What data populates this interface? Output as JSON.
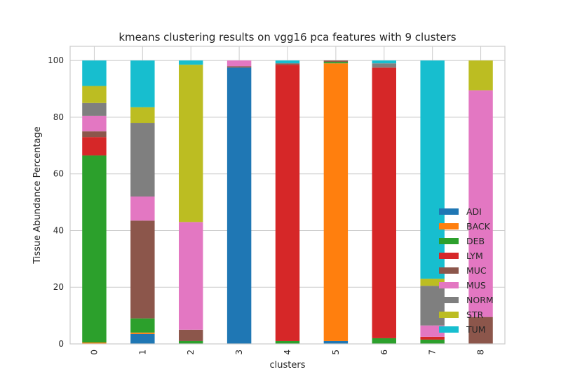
{
  "chart_data": {
    "type": "bar",
    "stacked": true,
    "title": "kmeans clustering results on vgg16 pca features with 9 clusters",
    "xlabel": "clusters",
    "ylabel": "Tissue Abundance Percentage",
    "categories": [
      "0",
      "1",
      "2",
      "3",
      "4",
      "5",
      "6",
      "7",
      "8"
    ],
    "ylim": [
      0,
      105
    ],
    "yticks": [
      0,
      20,
      40,
      60,
      80,
      100
    ],
    "grid": true,
    "legend_position": "lower right",
    "series": [
      {
        "name": "ADI",
        "color": "#1f77b4",
        "values": [
          0,
          3.5,
          0,
          97.5,
          0,
          1,
          0,
          0,
          0
        ]
      },
      {
        "name": "BACK",
        "color": "#ff7f0e",
        "values": [
          0.5,
          0.5,
          0,
          0,
          0,
          98,
          0,
          0,
          0
        ]
      },
      {
        "name": "DEB",
        "color": "#2ca02c",
        "values": [
          66,
          5,
          1,
          0,
          1,
          0.5,
          2,
          1.5,
          0
        ]
      },
      {
        "name": "LYM",
        "color": "#d62728",
        "values": [
          6.5,
          0,
          0,
          0,
          97.5,
          0,
          95.5,
          1,
          0
        ]
      },
      {
        "name": "MUC",
        "color": "#8c564b",
        "values": [
          2,
          34.5,
          4,
          0.5,
          0.5,
          0.5,
          0,
          0,
          9.5
        ]
      },
      {
        "name": "MUS",
        "color": "#e377c2",
        "values": [
          5.5,
          8.5,
          38,
          2,
          0,
          0,
          0,
          4,
          80
        ]
      },
      {
        "name": "NORM",
        "color": "#7f7f7f",
        "values": [
          4.5,
          26,
          0,
          0,
          0,
          0,
          1.5,
          14,
          0
        ]
      },
      {
        "name": "STR",
        "color": "#bcbd22",
        "values": [
          6,
          5.5,
          55.5,
          0,
          0,
          0,
          0,
          2.5,
          10.5
        ]
      },
      {
        "name": "TUM",
        "color": "#17becf",
        "values": [
          9,
          16.5,
          1.5,
          0,
          1,
          0,
          1,
          77,
          0
        ]
      }
    ]
  }
}
